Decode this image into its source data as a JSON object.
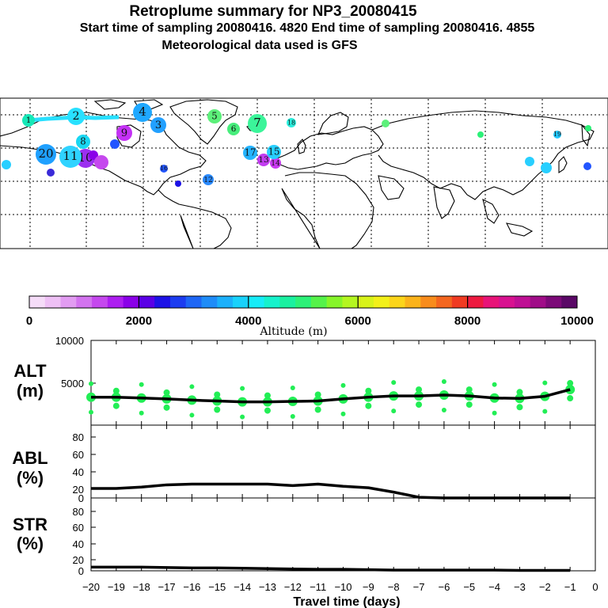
{
  "title": {
    "line1": "Retroplume summary for NP3_20080415",
    "line2": "Start time of sampling 20080416.  4820     End time of sampling 20080416.  4855",
    "line3": "Meteorological data used is GFS"
  },
  "map": {
    "markers": [
      {
        "label": "1",
        "color": "#16e8b8"
      },
      {
        "label": "2",
        "color": "#28e0ff"
      },
      {
        "label": "3",
        "color": "#22a0ff"
      },
      {
        "label": "4",
        "color": "#1fa8ff"
      },
      {
        "label": "5",
        "color": "#5cf07a"
      },
      {
        "label": "6",
        "color": "#47ee7c"
      },
      {
        "label": "7",
        "color": "#3bf59a"
      },
      {
        "label": "8",
        "color": "#19d7f2"
      },
      {
        "label": "9",
        "color": "#c431f5"
      },
      {
        "label": "10",
        "color": "#9b30f0"
      },
      {
        "label": "11",
        "color": "#2fd3ff"
      },
      {
        "label": "12",
        "color": "#2a8aff"
      },
      {
        "label": "13",
        "color": "#c23cf0"
      },
      {
        "label": "14",
        "color": "#c83af0"
      },
      {
        "label": "15",
        "color": "#28cfff"
      },
      {
        "label": "16",
        "color": "#2255ff"
      },
      {
        "label": "17",
        "color": "#24b4ff"
      },
      {
        "label": "18",
        "color": "#2aeedd"
      },
      {
        "label": "19",
        "color": "#21c8ff"
      },
      {
        "label": "20",
        "color": "#1fa0ff"
      }
    ]
  },
  "colorbar": {
    "labels": [
      "0",
      "2000",
      "4000",
      "6000",
      "8000",
      "10000"
    ],
    "title": "Altitude (m)",
    "colors": [
      "#f5dcf8",
      "#eec0f5",
      "#e29cf2",
      "#d373ef",
      "#c548ee",
      "#ad1ef0",
      "#8a00e8",
      "#5a00e6",
      "#1d12e6",
      "#1c3cf0",
      "#1e66f5",
      "#1f8cf8",
      "#1cb0fb",
      "#19d2fc",
      "#17ecf8",
      "#16f2cc",
      "#1af0a0",
      "#2cf178",
      "#55f24a",
      "#86f52a",
      "#b4f620",
      "#d8f31a",
      "#f3f019",
      "#fcd51a",
      "#fbb31b",
      "#f88c1c",
      "#f4661f",
      "#f03b22",
      "#ee1a40",
      "#e81478",
      "#d81290",
      "#bf1094",
      "#a00d88",
      "#7c0a78",
      "#5a0866"
    ]
  },
  "chart_data": [
    {
      "type": "line",
      "title": "ALT (m)",
      "panel_label_1": "ALT",
      "panel_label_2": "(m)",
      "x": [
        -20,
        -19,
        -18,
        -17,
        -16,
        -15,
        -14,
        -13,
        -12,
        -11,
        -10,
        -9,
        -8,
        -7,
        -6,
        -5,
        -4,
        -3,
        -2,
        -1
      ],
      "values": [
        3300,
        3300,
        3200,
        3100,
        2950,
        2850,
        2750,
        2750,
        2800,
        2850,
        3100,
        3300,
        3450,
        3450,
        3550,
        3450,
        3200,
        3150,
        3400,
        4200
      ],
      "ylim": [
        0,
        10000
      ],
      "yticks": [
        "10000",
        "5000"
      ],
      "scatter_color": "#22ee55",
      "xlabel": "Travel time (days)",
      "xtick_labels": [
        "−20",
        "−19",
        "−18",
        "−17",
        "−16",
        "−15",
        "−14",
        "−13",
        "−12",
        "−11",
        "−10",
        "−9",
        "−8",
        "−7",
        "−6",
        "−5",
        "−4",
        "−3",
        "−2",
        "−1",
        "0"
      ]
    },
    {
      "type": "line",
      "title": "ABL (%)",
      "panel_label_1": "ABL",
      "panel_label_2": "(%)",
      "x": [
        -20,
        -19,
        -18,
        -17,
        -16,
        -15,
        -14,
        -13,
        -12,
        -11,
        -10,
        -9,
        -8,
        -7,
        -6,
        -5,
        -4,
        -3,
        -2,
        -1
      ],
      "values": [
        13,
        13,
        15,
        18,
        19,
        19,
        19,
        19,
        17,
        19,
        16,
        14,
        8,
        1,
        0,
        0,
        0,
        0,
        0,
        0
      ],
      "ylim": [
        0,
        100
      ],
      "yticks": [
        "80",
        "60",
        "40",
        "20",
        "0"
      ]
    },
    {
      "type": "line",
      "title": "STR (%)",
      "panel_label_1": "STR",
      "panel_label_2": "(%)",
      "x": [
        -20,
        -19,
        -18,
        -17,
        -16,
        -15,
        -14,
        -13,
        -12,
        -11,
        -10,
        -9,
        -8,
        -7,
        -6,
        -5,
        -4,
        -3,
        -2,
        -1
      ],
      "values": [
        5,
        5,
        5,
        4.5,
        4,
        4,
        3.5,
        3,
        2.5,
        2,
        2,
        1.5,
        1,
        1,
        1,
        1,
        1,
        0.5,
        0.5,
        0.5
      ],
      "ylim": [
        0,
        100
      ],
      "yticks": [
        "80",
        "60",
        "40",
        "20",
        "0"
      ]
    }
  ]
}
